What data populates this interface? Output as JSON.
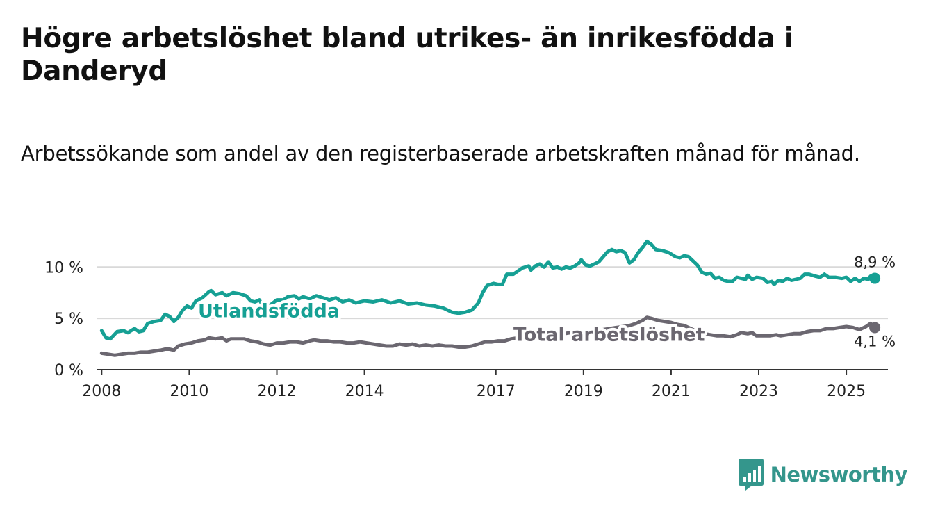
{
  "title": "Högre arbetslöshet bland utrikes- än inrikesfödda i Danderyd",
  "subtitle": "Arbetssökande som andel av den registerbaserade arbetskraften månad för månad.",
  "brand": {
    "name": "Newsworthy",
    "color": "#34968c",
    "icon": "bar-chart-logo-icon"
  },
  "chart_data": {
    "type": "line",
    "title": "Högre arbetslöshet bland utrikes- än inrikesfödda i Danderyd",
    "xlabel": "",
    "ylabel": "",
    "xlim": [
      2007.9,
      2025.95
    ],
    "ylim": [
      0,
      13
    ],
    "grid": true,
    "x_ticks": [
      {
        "value": 2008,
        "label": "2008"
      },
      {
        "value": 2010,
        "label": "2010"
      },
      {
        "value": 2012,
        "label": "2012"
      },
      {
        "value": 2014,
        "label": "2014"
      },
      {
        "value": 2017,
        "label": "2017"
      },
      {
        "value": 2019,
        "label": "2019"
      },
      {
        "value": 2021,
        "label": "2021"
      },
      {
        "value": 2023,
        "label": "2023"
      },
      {
        "value": 2025,
        "label": "2025"
      }
    ],
    "y_ticks": [
      {
        "value": 0,
        "label": "0 %"
      },
      {
        "value": 5,
        "label": "5 %"
      },
      {
        "value": 10,
        "label": "10 %"
      }
    ],
    "series": [
      {
        "name": "Utlandsfödda",
        "color": "#16a094",
        "label_anchor": {
          "x": 2010.2,
          "y": 5.8
        },
        "end_label": "8,9 %",
        "points": [
          [
            2008.0,
            3.8
          ],
          [
            2008.1,
            3.1
          ],
          [
            2008.2,
            3.0
          ],
          [
            2008.35,
            3.7
          ],
          [
            2008.5,
            3.8
          ],
          [
            2008.6,
            3.6
          ],
          [
            2008.75,
            4.0
          ],
          [
            2008.85,
            3.7
          ],
          [
            2008.95,
            3.8
          ],
          [
            2009.05,
            4.5
          ],
          [
            2009.2,
            4.7
          ],
          [
            2009.35,
            4.8
          ],
          [
            2009.45,
            5.4
          ],
          [
            2009.55,
            5.2
          ],
          [
            2009.65,
            4.7
          ],
          [
            2009.75,
            5.1
          ],
          [
            2009.85,
            5.8
          ],
          [
            2009.95,
            6.2
          ],
          [
            2010.05,
            6.0
          ],
          [
            2010.15,
            6.7
          ],
          [
            2010.3,
            7.0
          ],
          [
            2010.45,
            7.6
          ],
          [
            2010.5,
            7.7
          ],
          [
            2010.6,
            7.3
          ],
          [
            2010.75,
            7.5
          ],
          [
            2010.85,
            7.2
          ],
          [
            2011.0,
            7.5
          ],
          [
            2011.15,
            7.4
          ],
          [
            2011.3,
            7.2
          ],
          [
            2011.4,
            6.7
          ],
          [
            2011.5,
            6.6
          ],
          [
            2011.6,
            6.8
          ],
          [
            2011.7,
            6.1
          ],
          [
            2011.85,
            6.3
          ],
          [
            2012.0,
            6.8
          ],
          [
            2012.15,
            6.8
          ],
          [
            2012.25,
            7.1
          ],
          [
            2012.4,
            7.2
          ],
          [
            2012.5,
            6.9
          ],
          [
            2012.6,
            7.1
          ],
          [
            2012.75,
            6.9
          ],
          [
            2012.9,
            7.2
          ],
          [
            2013.05,
            7.0
          ],
          [
            2013.2,
            6.8
          ],
          [
            2013.35,
            7.0
          ],
          [
            2013.5,
            6.6
          ],
          [
            2013.65,
            6.8
          ],
          [
            2013.8,
            6.5
          ],
          [
            2014.0,
            6.7
          ],
          [
            2014.2,
            6.6
          ],
          [
            2014.4,
            6.8
          ],
          [
            2014.6,
            6.5
          ],
          [
            2014.8,
            6.7
          ],
          [
            2015.0,
            6.4
          ],
          [
            2015.2,
            6.5
          ],
          [
            2015.4,
            6.3
          ],
          [
            2015.6,
            6.2
          ],
          [
            2015.8,
            6.0
          ],
          [
            2016.0,
            5.6
          ],
          [
            2016.15,
            5.5
          ],
          [
            2016.3,
            5.6
          ],
          [
            2016.45,
            5.8
          ],
          [
            2016.6,
            6.5
          ],
          [
            2016.7,
            7.5
          ],
          [
            2016.8,
            8.2
          ],
          [
            2016.95,
            8.4
          ],
          [
            2017.05,
            8.3
          ],
          [
            2017.15,
            8.3
          ],
          [
            2017.25,
            9.3
          ],
          [
            2017.4,
            9.3
          ],
          [
            2017.5,
            9.6
          ],
          [
            2017.6,
            9.9
          ],
          [
            2017.75,
            10.1
          ],
          [
            2017.8,
            9.7
          ],
          [
            2017.9,
            10.1
          ],
          [
            2018.0,
            10.3
          ],
          [
            2018.1,
            10.0
          ],
          [
            2018.2,
            10.5
          ],
          [
            2018.3,
            9.9
          ],
          [
            2018.4,
            10.0
          ],
          [
            2018.5,
            9.8
          ],
          [
            2018.6,
            10.0
          ],
          [
            2018.7,
            9.9
          ],
          [
            2018.8,
            10.1
          ],
          [
            2018.9,
            10.4
          ],
          [
            2018.95,
            10.7
          ],
          [
            2019.05,
            10.2
          ],
          [
            2019.15,
            10.1
          ],
          [
            2019.25,
            10.3
          ],
          [
            2019.35,
            10.5
          ],
          [
            2019.45,
            11.0
          ],
          [
            2019.55,
            11.5
          ],
          [
            2019.65,
            11.7
          ],
          [
            2019.75,
            11.5
          ],
          [
            2019.85,
            11.6
          ],
          [
            2019.95,
            11.4
          ],
          [
            2020.05,
            10.4
          ],
          [
            2020.15,
            10.7
          ],
          [
            2020.25,
            11.4
          ],
          [
            2020.35,
            11.9
          ],
          [
            2020.45,
            12.5
          ],
          [
            2020.55,
            12.2
          ],
          [
            2020.65,
            11.7
          ],
          [
            2020.8,
            11.6
          ],
          [
            2020.95,
            11.4
          ],
          [
            2021.1,
            11.0
          ],
          [
            2021.2,
            10.9
          ],
          [
            2021.3,
            11.1
          ],
          [
            2021.4,
            11.0
          ],
          [
            2021.5,
            10.6
          ],
          [
            2021.6,
            10.2
          ],
          [
            2021.7,
            9.5
          ],
          [
            2021.8,
            9.3
          ],
          [
            2021.9,
            9.4
          ],
          [
            2022.0,
            8.9
          ],
          [
            2022.1,
            9.0
          ],
          [
            2022.2,
            8.7
          ],
          [
            2022.3,
            8.6
          ],
          [
            2022.4,
            8.6
          ],
          [
            2022.5,
            9.0
          ],
          [
            2022.6,
            8.9
          ],
          [
            2022.7,
            8.8
          ],
          [
            2022.75,
            9.2
          ],
          [
            2022.85,
            8.8
          ],
          [
            2022.95,
            9.0
          ],
          [
            2023.1,
            8.9
          ],
          [
            2023.2,
            8.5
          ],
          [
            2023.3,
            8.6
          ],
          [
            2023.35,
            8.3
          ],
          [
            2023.45,
            8.7
          ],
          [
            2023.55,
            8.6
          ],
          [
            2023.65,
            8.9
          ],
          [
            2023.75,
            8.7
          ],
          [
            2023.85,
            8.8
          ],
          [
            2023.95,
            8.9
          ],
          [
            2024.05,
            9.3
          ],
          [
            2024.15,
            9.3
          ],
          [
            2024.3,
            9.1
          ],
          [
            2024.4,
            9.0
          ],
          [
            2024.5,
            9.3
          ],
          [
            2024.6,
            9.0
          ],
          [
            2024.75,
            9.0
          ],
          [
            2024.9,
            8.9
          ],
          [
            2025.0,
            9.0
          ],
          [
            2025.1,
            8.6
          ],
          [
            2025.2,
            8.9
          ],
          [
            2025.3,
            8.6
          ],
          [
            2025.4,
            8.9
          ],
          [
            2025.5,
            8.8
          ],
          [
            2025.55,
            9.1
          ],
          [
            2025.65,
            8.9
          ]
        ]
      },
      {
        "name": "Total arbetslöshet",
        "color": "#6b6770",
        "label_anchor": {
          "x": 2017.4,
          "y": 3.5
        },
        "end_label": "4,1 %",
        "points": [
          [
            2008.0,
            1.6
          ],
          [
            2008.15,
            1.5
          ],
          [
            2008.3,
            1.4
          ],
          [
            2008.45,
            1.5
          ],
          [
            2008.6,
            1.6
          ],
          [
            2008.75,
            1.6
          ],
          [
            2008.9,
            1.7
          ],
          [
            2009.05,
            1.7
          ],
          [
            2009.2,
            1.8
          ],
          [
            2009.35,
            1.9
          ],
          [
            2009.45,
            2.0
          ],
          [
            2009.55,
            2.0
          ],
          [
            2009.65,
            1.9
          ],
          [
            2009.75,
            2.3
          ],
          [
            2009.9,
            2.5
          ],
          [
            2010.05,
            2.6
          ],
          [
            2010.2,
            2.8
          ],
          [
            2010.35,
            2.9
          ],
          [
            2010.45,
            3.1
          ],
          [
            2010.6,
            3.0
          ],
          [
            2010.75,
            3.1
          ],
          [
            2010.85,
            2.8
          ],
          [
            2010.95,
            3.0
          ],
          [
            2011.1,
            3.0
          ],
          [
            2011.25,
            3.0
          ],
          [
            2011.4,
            2.8
          ],
          [
            2011.55,
            2.7
          ],
          [
            2011.7,
            2.5
          ],
          [
            2011.85,
            2.4
          ],
          [
            2012.0,
            2.6
          ],
          [
            2012.15,
            2.6
          ],
          [
            2012.3,
            2.7
          ],
          [
            2012.45,
            2.7
          ],
          [
            2012.6,
            2.6
          ],
          [
            2012.75,
            2.8
          ],
          [
            2012.85,
            2.9
          ],
          [
            2013.0,
            2.8
          ],
          [
            2013.15,
            2.8
          ],
          [
            2013.3,
            2.7
          ],
          [
            2013.45,
            2.7
          ],
          [
            2013.6,
            2.6
          ],
          [
            2013.75,
            2.6
          ],
          [
            2013.9,
            2.7
          ],
          [
            2014.05,
            2.6
          ],
          [
            2014.2,
            2.5
          ],
          [
            2014.35,
            2.4
          ],
          [
            2014.5,
            2.3
          ],
          [
            2014.65,
            2.3
          ],
          [
            2014.8,
            2.5
          ],
          [
            2014.95,
            2.4
          ],
          [
            2015.1,
            2.5
          ],
          [
            2015.25,
            2.3
          ],
          [
            2015.4,
            2.4
          ],
          [
            2015.55,
            2.3
          ],
          [
            2015.7,
            2.4
          ],
          [
            2015.85,
            2.3
          ],
          [
            2016.0,
            2.3
          ],
          [
            2016.15,
            2.2
          ],
          [
            2016.3,
            2.2
          ],
          [
            2016.45,
            2.3
          ],
          [
            2016.6,
            2.5
          ],
          [
            2016.75,
            2.7
          ],
          [
            2016.9,
            2.7
          ],
          [
            2017.05,
            2.8
          ],
          [
            2017.2,
            2.8
          ],
          [
            2017.35,
            3.0
          ],
          [
            2017.5,
            3.1
          ],
          [
            2017.65,
            3.2
          ],
          [
            2017.8,
            3.2
          ],
          [
            2017.95,
            3.3
          ],
          [
            2018.1,
            3.4
          ],
          [
            2018.25,
            3.4
          ],
          [
            2018.4,
            3.5
          ],
          [
            2018.55,
            3.5
          ],
          [
            2018.7,
            3.6
          ],
          [
            2018.85,
            3.6
          ],
          [
            2019.0,
            3.7
          ],
          [
            2019.15,
            3.7
          ],
          [
            2019.3,
            3.8
          ],
          [
            2019.45,
            3.9
          ],
          [
            2019.6,
            4.0
          ],
          [
            2019.75,
            4.1
          ],
          [
            2019.9,
            4.2
          ],
          [
            2020.05,
            4.3
          ],
          [
            2020.2,
            4.5
          ],
          [
            2020.35,
            4.8
          ],
          [
            2020.45,
            5.1
          ],
          [
            2020.55,
            5.0
          ],
          [
            2020.7,
            4.8
          ],
          [
            2020.85,
            4.7
          ],
          [
            2021.0,
            4.6
          ],
          [
            2021.15,
            4.4
          ],
          [
            2021.3,
            4.3
          ],
          [
            2021.45,
            4.0
          ],
          [
            2021.6,
            3.7
          ],
          [
            2021.75,
            3.5
          ],
          [
            2021.9,
            3.4
          ],
          [
            2022.05,
            3.3
          ],
          [
            2022.2,
            3.3
          ],
          [
            2022.35,
            3.2
          ],
          [
            2022.5,
            3.4
          ],
          [
            2022.6,
            3.6
          ],
          [
            2022.75,
            3.5
          ],
          [
            2022.85,
            3.6
          ],
          [
            2022.95,
            3.3
          ],
          [
            2023.1,
            3.3
          ],
          [
            2023.25,
            3.3
          ],
          [
            2023.4,
            3.4
          ],
          [
            2023.5,
            3.3
          ],
          [
            2023.65,
            3.4
          ],
          [
            2023.8,
            3.5
          ],
          [
            2023.95,
            3.5
          ],
          [
            2024.1,
            3.7
          ],
          [
            2024.25,
            3.8
          ],
          [
            2024.4,
            3.8
          ],
          [
            2024.55,
            4.0
          ],
          [
            2024.7,
            4.0
          ],
          [
            2024.85,
            4.1
          ],
          [
            2025.0,
            4.2
          ],
          [
            2025.15,
            4.1
          ],
          [
            2025.3,
            3.9
          ],
          [
            2025.45,
            4.2
          ],
          [
            2025.55,
            4.5
          ],
          [
            2025.65,
            4.1
          ]
        ]
      }
    ]
  }
}
